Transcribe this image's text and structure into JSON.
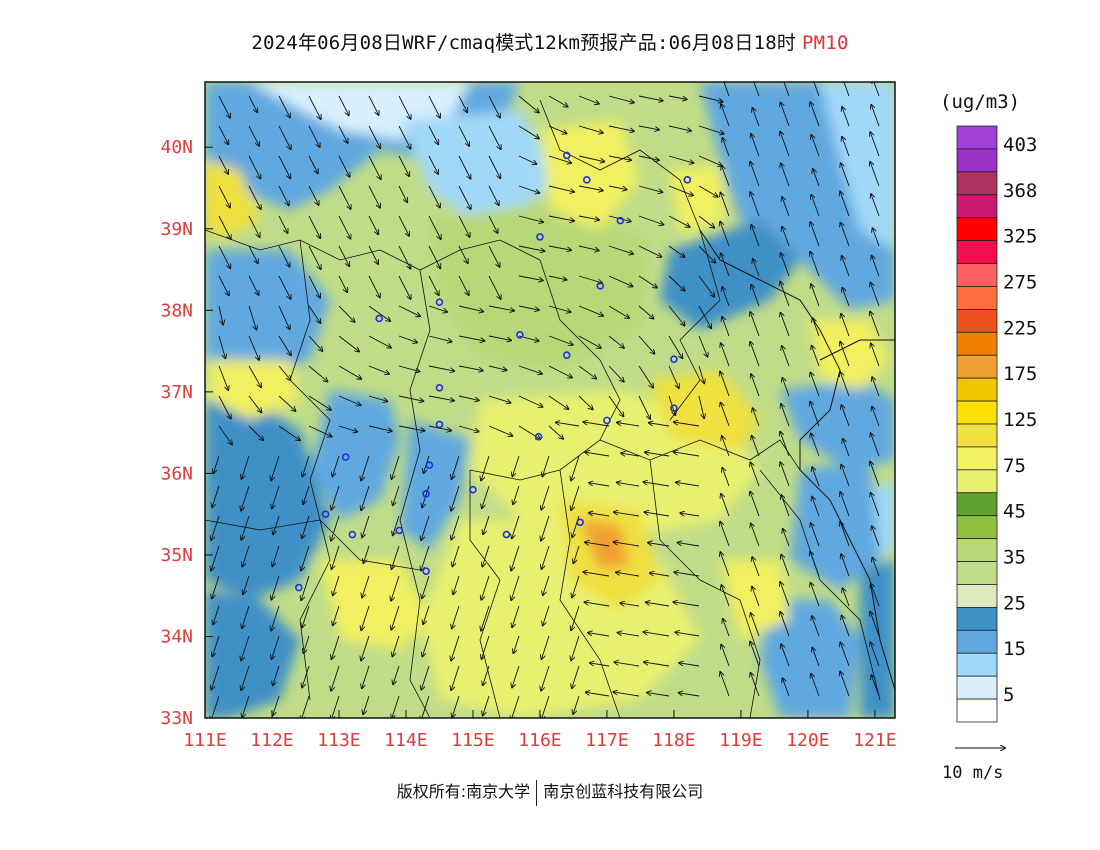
{
  "title": {
    "text": "2024年06月08日WRF/cmaq模式12km预报产品:06月08日18时",
    "pollutant": "PM10"
  },
  "map": {
    "lon_labels": [
      "111E",
      "112E",
      "113E",
      "114E",
      "115E",
      "116E",
      "117E",
      "118E",
      "119E",
      "120E",
      "121E"
    ],
    "lat_labels": [
      "40N",
      "39N",
      "38N",
      "37N",
      "36N",
      "35N",
      "34N",
      "33N"
    ],
    "lon_range": [
      111,
      121.3
    ],
    "lat_range": [
      33,
      40.8
    ]
  },
  "legend": {
    "unit": "(ug/m3)",
    "levels": [
      {
        "label": "403",
        "color": "#a040d8"
      },
      {
        "label": "",
        "color": "#9a30c8"
      },
      {
        "label": "368",
        "color": "#b03060"
      },
      {
        "label": "",
        "color": "#c81870"
      },
      {
        "label": "325",
        "color": "#ff0000"
      },
      {
        "label": "",
        "color": "#f01050"
      },
      {
        "label": "275",
        "color": "#ff6060"
      },
      {
        "label": "",
        "color": "#ff7040"
      },
      {
        "label": "225",
        "color": "#f05020"
      },
      {
        "label": "",
        "color": "#f08000"
      },
      {
        "label": "175",
        "color": "#f0a030"
      },
      {
        "label": "",
        "color": "#f0c800"
      },
      {
        "label": "125",
        "color": "#ffe000"
      },
      {
        "label": "",
        "color": "#f0e040"
      },
      {
        "label": "75",
        "color": "#f0f060"
      },
      {
        "label": "",
        "color": "#e8f070"
      },
      {
        "label": "45",
        "color": "#60a030"
      },
      {
        "label": "",
        "color": "#90c040"
      },
      {
        "label": "35",
        "color": "#b8d878"
      },
      {
        "label": "",
        "color": "#c0dc88"
      },
      {
        "label": "25",
        "color": "#dde8c0"
      },
      {
        "label": "",
        "color": "#4090c8"
      },
      {
        "label": "15",
        "color": "#60a8e0"
      },
      {
        "label": "",
        "color": "#a0d8f8"
      },
      {
        "label": "5",
        "color": "#d8f0fc"
      },
      {
        "label": "",
        "color": "#ffffff"
      }
    ]
  },
  "wind_reference": {
    "label": "10 m/s"
  },
  "footer": {
    "copyright": "版权所有:南京大学",
    "company": "南京创蓝科技有限公司"
  }
}
